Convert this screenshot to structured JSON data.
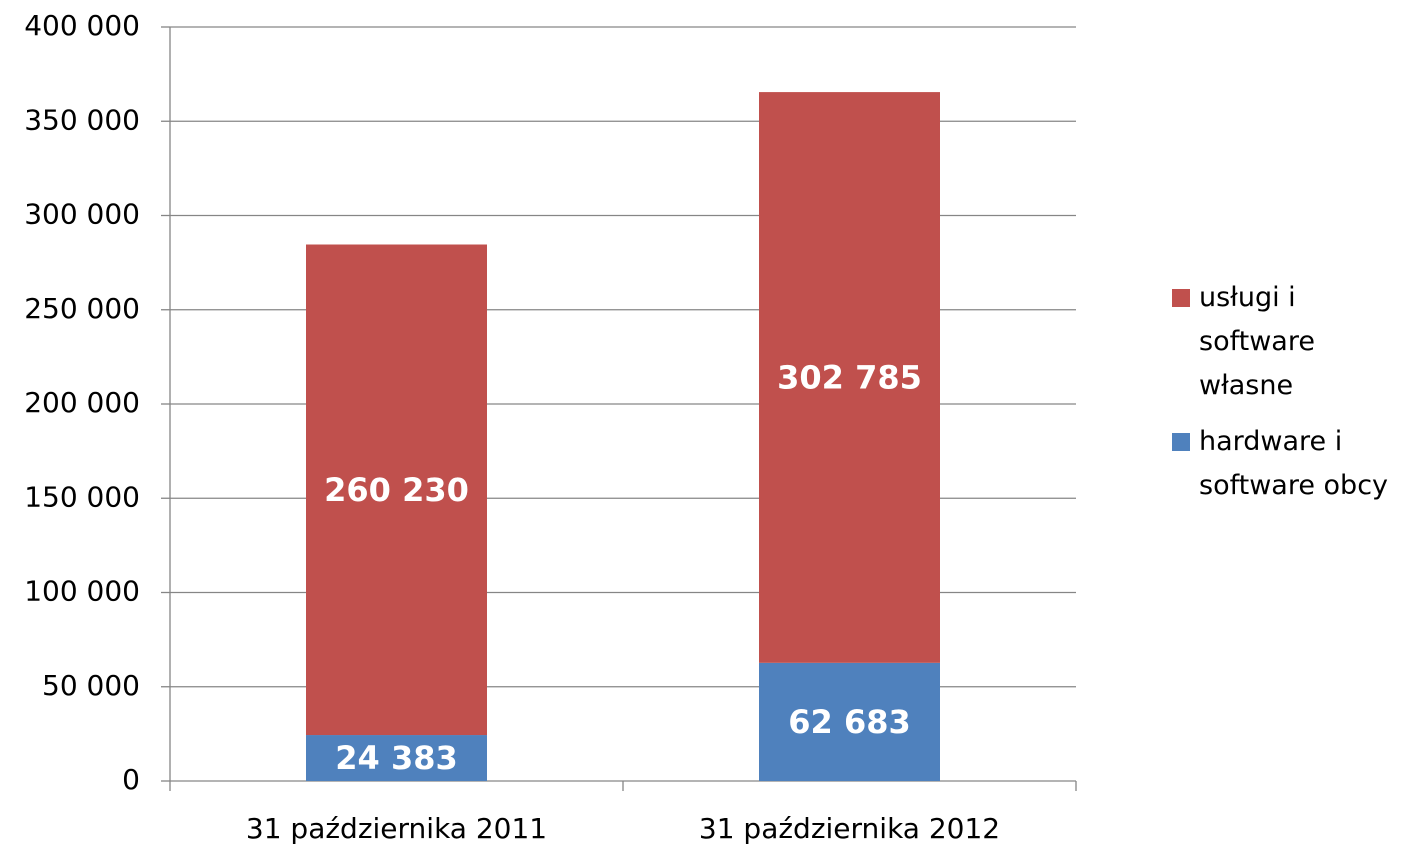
{
  "chart_data": {
    "type": "bar",
    "stacked": true,
    "categories": [
      "31 października 2011",
      "31 października 2012"
    ],
    "series": [
      {
        "name": "hardware i software obcy",
        "color": "#4f81bd",
        "values": [
          24383,
          62683
        ],
        "value_labels": [
          "24 383",
          "62 683"
        ]
      },
      {
        "name": "usługi i software własne",
        "color": "#c0504d",
        "values": [
          260230,
          302785
        ],
        "value_labels": [
          "260 230",
          "302 785"
        ]
      }
    ],
    "ylim": [
      0,
      400000
    ],
    "yticks": [
      0,
      {
        "value": 50000,
        "label": "50 000"
      },
      {
        "value": 100000,
        "label": "100 000"
      },
      {
        "value": 150000,
        "label": "150 000"
      },
      {
        "value": 200000,
        "label": "200 000"
      },
      {
        "value": 250000,
        "label": "250 000"
      },
      {
        "value": 300000,
        "label": "300 000"
      },
      {
        "value": 350000,
        "label": "350 000"
      },
      {
        "value": 400000,
        "label": "400 000"
      }
    ],
    "grid": true,
    "legend": "right"
  }
}
